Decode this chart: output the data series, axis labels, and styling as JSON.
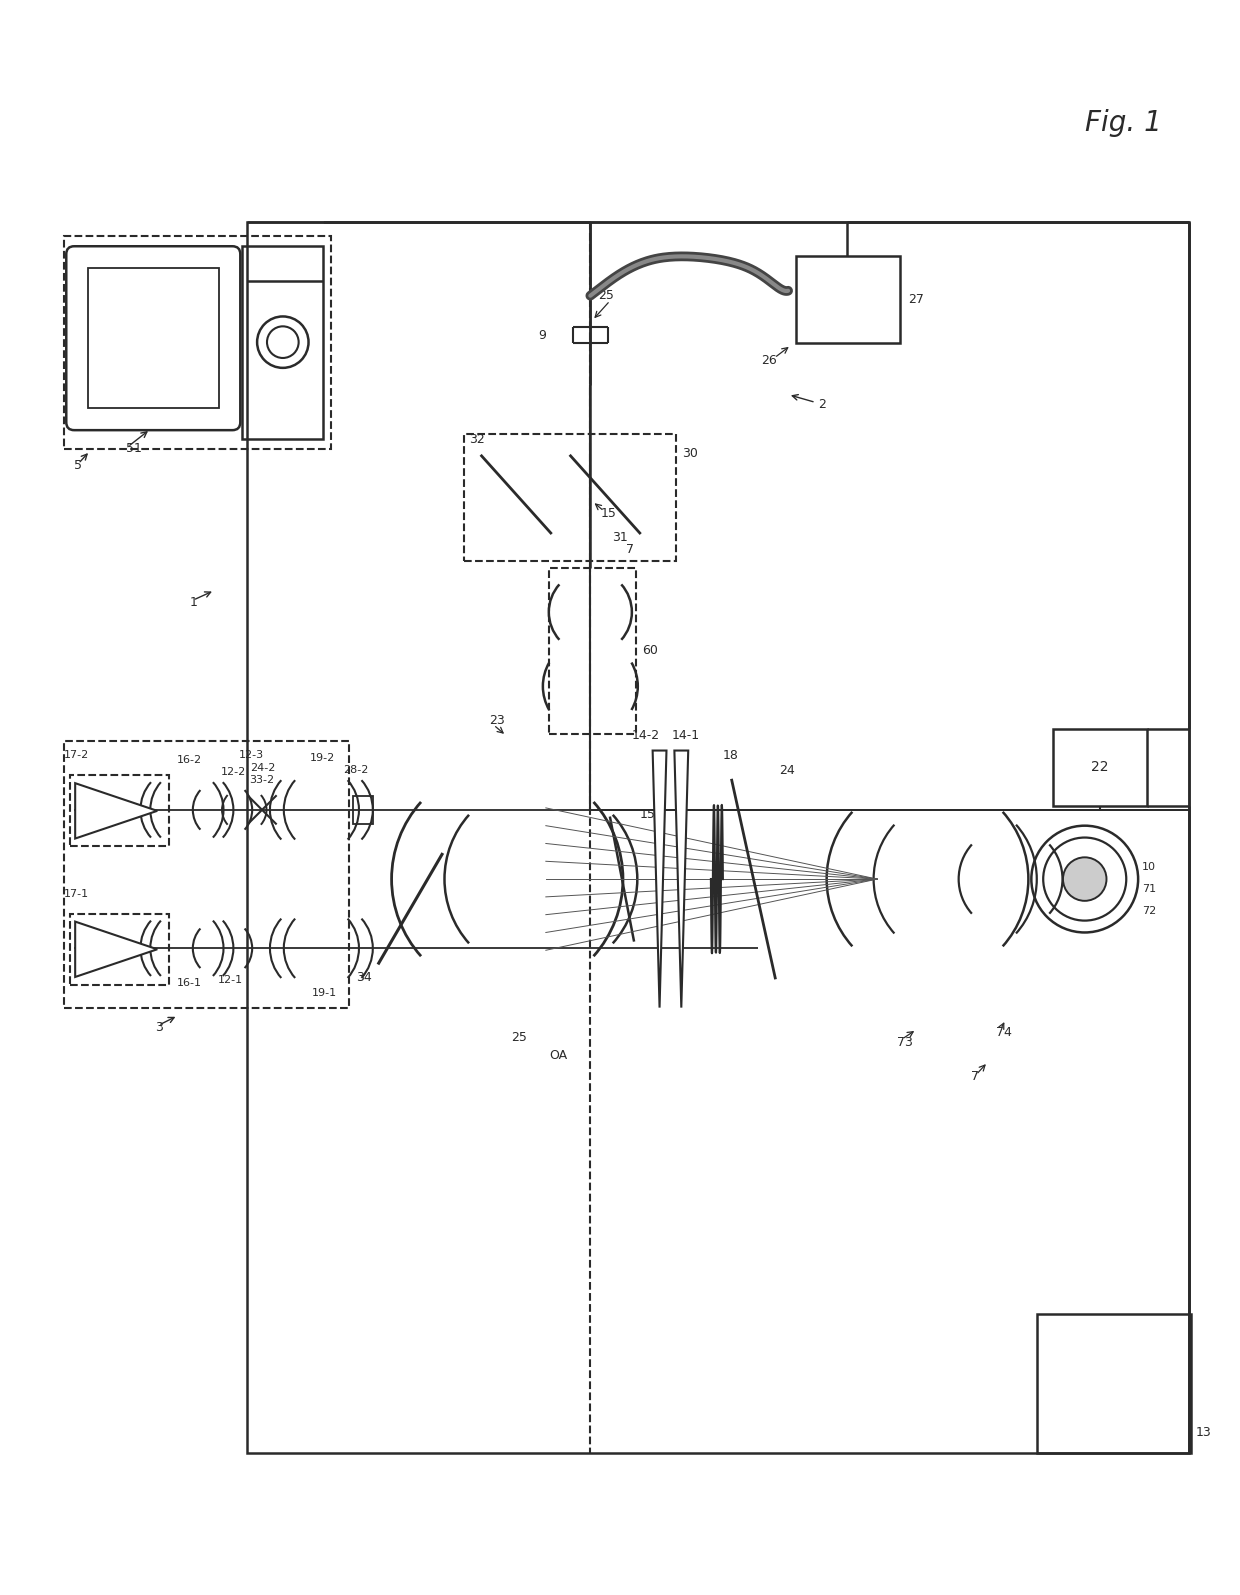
{
  "fig_label": "Fig. 1",
  "background_color": "#ffffff",
  "line_color": "#2a2a2a",
  "fig_size": [
    12.4,
    15.95
  ],
  "dpi": 100
}
